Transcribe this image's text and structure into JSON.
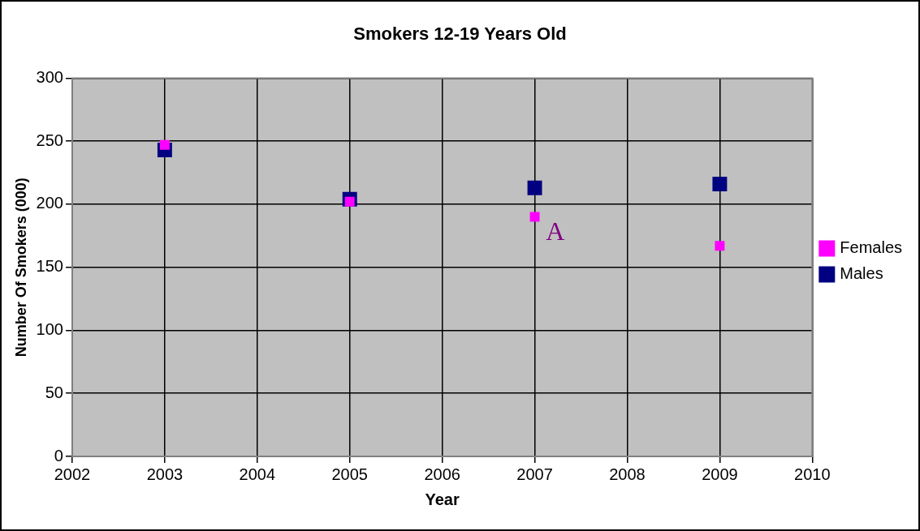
{
  "chart_data": {
    "type": "scatter",
    "title": "Smokers 12-19 Years Old",
    "xlabel": "Year",
    "ylabel": "Number Of Smokers (000)",
    "x": [
      2003,
      2005,
      2007,
      2009
    ],
    "series": [
      {
        "name": "Males",
        "color": "#000080",
        "values": [
          243,
          204,
          213,
          216
        ]
      },
      {
        "name": "Females",
        "color": "#ff00ff",
        "values": [
          247,
          202,
          190,
          167
        ]
      }
    ],
    "xlim": [
      2002,
      2010
    ],
    "xticks": [
      2002,
      2003,
      2004,
      2005,
      2006,
      2007,
      2008,
      2009,
      2010
    ],
    "ylim": [
      0,
      300
    ],
    "yticks": [
      0,
      50,
      100,
      150,
      200,
      250,
      300
    ],
    "grid": true,
    "legend": "right",
    "marker": "square",
    "annotations": [
      "A"
    ]
  }
}
